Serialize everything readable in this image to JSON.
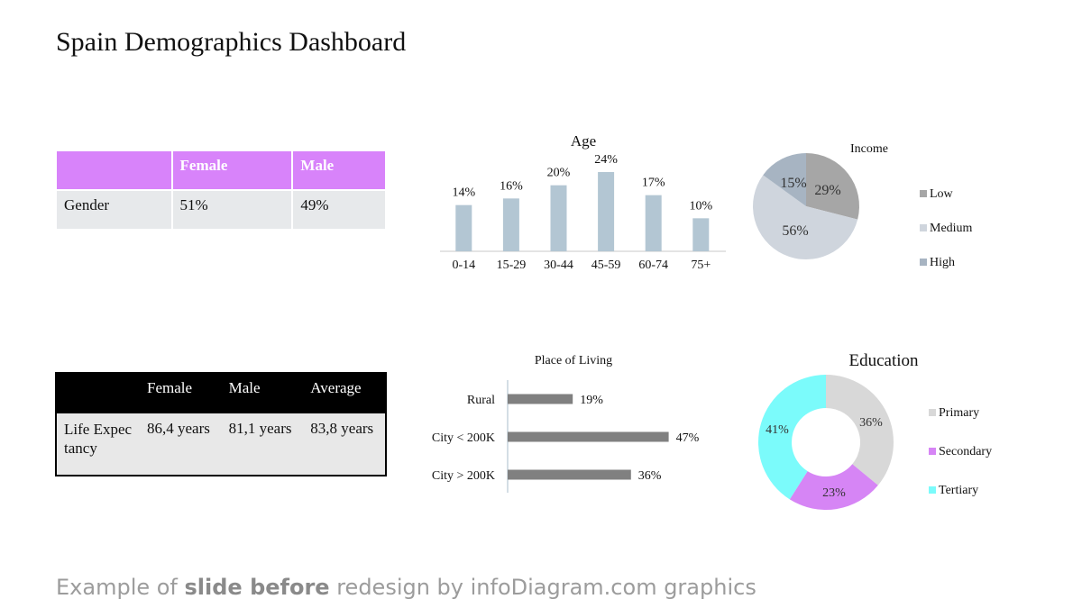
{
  "page": {
    "title": "Spain Demographics Dashboard",
    "footer": {
      "prefix": "Example of ",
      "bold": "slide before",
      "suffix": " redesign by infoDiagram.com graphics"
    }
  },
  "gender_table": {
    "headers": [
      "",
      "Female",
      "Male"
    ],
    "rows": [
      [
        "Gender",
        "51%",
        "49%"
      ]
    ],
    "header_color": "#d883fa"
  },
  "life_table": {
    "headers": [
      "",
      "Female",
      "Male",
      "Average"
    ],
    "rows": [
      [
        "Life Expectancy",
        "86,4 years",
        "81,1 years",
        "83,8 years"
      ]
    ]
  },
  "chart_data": [
    {
      "id": "age",
      "type": "bar",
      "title": "Age",
      "categories": [
        "0-14",
        "15-29",
        "30-44",
        "45-59",
        "60-74",
        "75+"
      ],
      "values": [
        14,
        16,
        20,
        24,
        17,
        10
      ],
      "labels": [
        "14%",
        "16%",
        "20%",
        "24%",
        "17%",
        "10%"
      ],
      "color": "#b3c6d3",
      "ylim": [
        0,
        30
      ]
    },
    {
      "id": "income",
      "type": "pie",
      "title": "Income",
      "categories": [
        "Low",
        "Medium",
        "High"
      ],
      "values": [
        29,
        56,
        15
      ],
      "labels": [
        "29%",
        "56%",
        "15%"
      ],
      "colors": [
        "#a6a6a6",
        "#cfd5dd",
        "#a7b4c2"
      ],
      "legend": "right"
    },
    {
      "id": "place",
      "type": "bar",
      "orientation": "horizontal",
      "title": "Place of Living",
      "categories": [
        "Rural",
        "City < 200K",
        "City > 200K"
      ],
      "values": [
        19,
        47,
        36
      ],
      "labels": [
        "19%",
        "47%",
        "36%"
      ],
      "color": "#808080",
      "xlim": [
        0,
        50
      ]
    },
    {
      "id": "education",
      "type": "pie",
      "subtype": "donut",
      "title": "Education",
      "categories": [
        "Primary",
        "Secondary",
        "Tertiary"
      ],
      "values": [
        36,
        23,
        41
      ],
      "labels": [
        "36%",
        "23%",
        "41%"
      ],
      "colors": [
        "#d8d8d8",
        "#d685f5",
        "#7bfbfb"
      ],
      "legend": "right"
    }
  ]
}
